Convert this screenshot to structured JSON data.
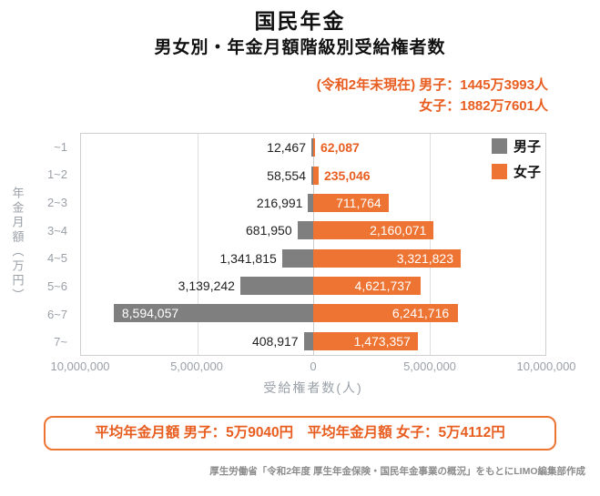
{
  "header": {
    "title": "国民年金",
    "subtitle": "男女別・年金月額階級別受給権者数",
    "info_line1": "(令和2年末現在) 男子：1445万3993人",
    "info_line2": "女子：1882万7601人"
  },
  "chart_data": {
    "type": "bar",
    "orientation": "horizontal-diverging-pyramid",
    "title": "国民年金 男女別・年金月額階級別受給権者数",
    "categories": [
      "~1",
      "1~2",
      "2~3",
      "3~4",
      "4~5",
      "5~6",
      "6~7",
      "7~"
    ],
    "series": [
      {
        "name": "男子",
        "color": "#7f7f7f",
        "side": "left",
        "values": [
          12467,
          58554,
          216991,
          681950,
          1341815,
          3139242,
          8594057,
          408917
        ],
        "labels": [
          "12,467",
          "58,554",
          "216,991",
          "681,950",
          "1,341,815",
          "3,139,242",
          "8,594,057",
          "408,917"
        ]
      },
      {
        "name": "女子",
        "color": "#ee7433",
        "side": "right",
        "values": [
          62087,
          235046,
          711764,
          2160071,
          3321823,
          4621737,
          6241716,
          1473357
        ],
        "labels": [
          "62,087",
          "235,046",
          "711,764",
          "2,160,071",
          "3,321,823",
          "4,621,737",
          "6,241,716",
          "1,473,357"
        ]
      }
    ],
    "x_axis": {
      "label": "受給権者数(人)",
      "max": 10000000,
      "ticks": [
        "10,000,000",
        "5,000,000",
        "0",
        "5,000,000",
        "10,000,000"
      ]
    },
    "y_axis": {
      "label": "年金月額（万円）"
    },
    "grid": true,
    "legend_position": "top-right"
  },
  "summary_box": {
    "text": "平均年金月額 男子：5万9040円　平均年金月額 女子：5万4112円"
  },
  "footer": {
    "source": "厚生労働省「令和2年度 厚生年金保険・国民年金事業の概況」をもとにLIMO編集部作成"
  },
  "colors": {
    "accent_text_orange": "#e85d20",
    "bar_orange": "#ee7433",
    "bar_gray": "#7f7f7f",
    "axis_gray": "#9aa0a8"
  }
}
